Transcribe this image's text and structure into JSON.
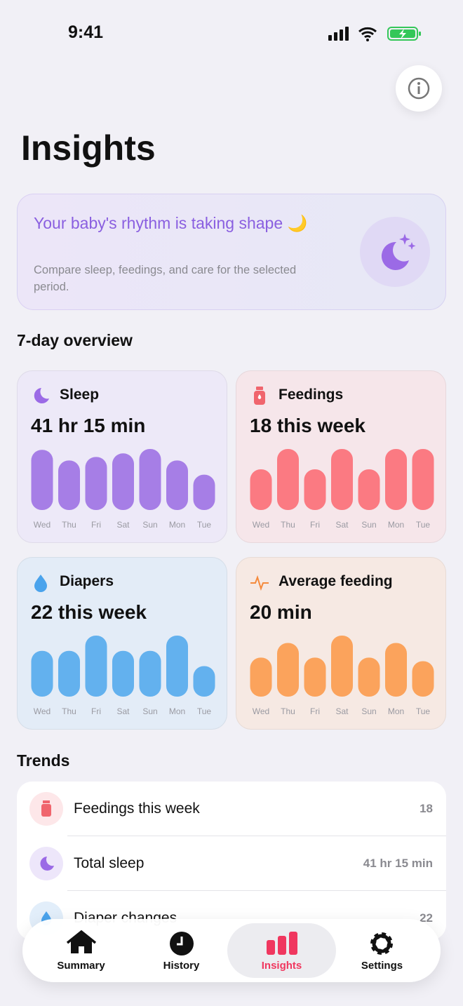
{
  "status_bar": {
    "time": "9:41"
  },
  "header": {
    "title": "Insights"
  },
  "banner": {
    "title": "Your baby's rhythm is taking shape 🌙",
    "subtitle": "Compare sleep, feedings, and care for the selected period."
  },
  "overview": {
    "heading": "7-day overview",
    "cards": [
      {
        "label": "Sleep",
        "summary": "41 hr 15 min",
        "chart_data": {
          "type": "bar",
          "categories": [
            "Wed",
            "Thu",
            "Fri",
            "Sat",
            "Sun",
            "Mon",
            "Tue"
          ],
          "values": [
            6.8,
            5.6,
            6.0,
            6.4,
            6.9,
            5.6,
            4.0
          ],
          "color": "#a67ee6"
        }
      },
      {
        "label": "Feedings",
        "summary": "18 this week",
        "chart_data": {
          "type": "bar",
          "categories": [
            "Wed",
            "Thu",
            "Fri",
            "Sat",
            "Sun",
            "Mon",
            "Tue"
          ],
          "values": [
            2,
            3,
            2,
            3,
            2,
            3,
            3
          ],
          "color": "#fb7a82"
        }
      },
      {
        "label": "Diapers",
        "summary": "22 this week",
        "chart_data": {
          "type": "bar",
          "categories": [
            "Wed",
            "Thu",
            "Fri",
            "Sat",
            "Sun",
            "Mon",
            "Tue"
          ],
          "values": [
            3,
            3,
            4,
            3,
            3,
            4,
            2
          ],
          "color": "#63b1ee"
        }
      },
      {
        "label": "Average feeding",
        "summary": "20 min",
        "chart_data": {
          "type": "bar",
          "categories": [
            "Wed",
            "Thu",
            "Fri",
            "Sat",
            "Sun",
            "Mon",
            "Tue"
          ],
          "values": [
            16,
            22,
            16,
            25,
            16,
            22,
            14.5
          ],
          "color": "#fba35c"
        }
      }
    ]
  },
  "trends": {
    "heading": "Trends",
    "items": [
      {
        "label": "Feedings this week",
        "value": "18"
      },
      {
        "label": "Total sleep",
        "value": "41 hr 15 min"
      },
      {
        "label": "Diaper changes",
        "value": "22"
      }
    ]
  },
  "tab_bar": {
    "active": 2,
    "items": [
      "Summary",
      "History",
      "Insights",
      "Settings"
    ]
  }
}
